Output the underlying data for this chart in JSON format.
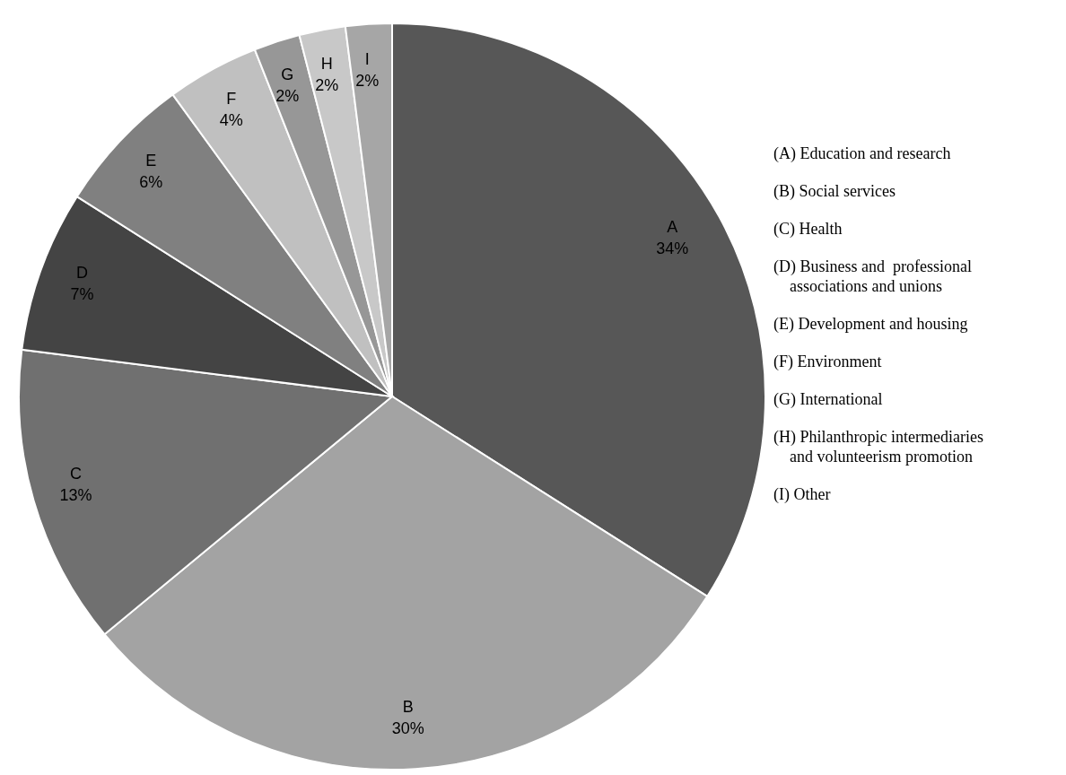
{
  "chart_data": {
    "type": "pie",
    "categories": [
      "A",
      "B",
      "C",
      "D",
      "E",
      "F",
      "G",
      "H",
      "I"
    ],
    "values": [
      34,
      30,
      13,
      7,
      6,
      4,
      2,
      2,
      2
    ],
    "value_labels": [
      "34%",
      "30%",
      "13%",
      "7%",
      "6%",
      "4%",
      "2%",
      "2%",
      "2%"
    ],
    "colors": [
      "#575757",
      "#a3a3a3",
      "#707070",
      "#444444",
      "#808080",
      "#c0c0c0",
      "#979797",
      "#c8c8c8",
      "#a6a6a6"
    ],
    "legend": false,
    "annotations": [
      "(A) Education and research",
      "(B) Social services",
      "(C) Health",
      "(D) Business and  professional\nassociations and unions",
      "(E) Development and housing",
      "(F) Environment",
      "(G) International",
      "(H) Philanthropic intermediaries\nand volunteerism promotion",
      "(I) Other"
    ]
  }
}
